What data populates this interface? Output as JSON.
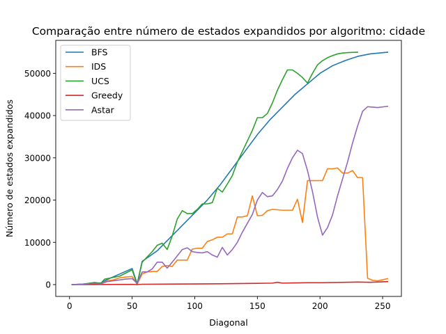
{
  "chart_data": {
    "type": "line",
    "title": "Comparação entre número de estados expandidos por algoritmo: cidade",
    "xlabel": "Diagonal",
    "ylabel": "Número de estados expandidos",
    "xlim": [
      -11,
      265
    ],
    "ylim": [
      -2800,
      57800
    ],
    "x_ticks": [
      0,
      50,
      100,
      150,
      200,
      250
    ],
    "y_ticks": [
      0,
      10000,
      20000,
      30000,
      40000,
      50000
    ],
    "grid": false,
    "legend": "top-left",
    "series": [
      {
        "name": "BFS",
        "color": "#1f77b4",
        "points": [
          [
            2,
            0
          ],
          [
            10,
            100
          ],
          [
            20,
            300
          ],
          [
            25,
            400
          ],
          [
            30,
            1200
          ],
          [
            40,
            2500
          ],
          [
            50,
            3800
          ],
          [
            54,
            200
          ],
          [
            58,
            5500
          ],
          [
            70,
            8000
          ],
          [
            80,
            11000
          ],
          [
            90,
            14000
          ],
          [
            100,
            17000
          ],
          [
            110,
            20000
          ],
          [
            120,
            23500
          ],
          [
            130,
            27500
          ],
          [
            140,
            31500
          ],
          [
            150,
            35500
          ],
          [
            160,
            39000
          ],
          [
            170,
            42000
          ],
          [
            180,
            45000
          ],
          [
            190,
            47500
          ],
          [
            200,
            50000
          ],
          [
            210,
            51800
          ],
          [
            220,
            53000
          ],
          [
            230,
            54000
          ],
          [
            240,
            54600
          ],
          [
            254,
            55000
          ]
        ]
      },
      {
        "name": "IDS",
        "color": "#ff7f0e",
        "points": [
          [
            2,
            0
          ],
          [
            10,
            100
          ],
          [
            20,
            300
          ],
          [
            25,
            100
          ],
          [
            30,
            900
          ],
          [
            35,
            1100
          ],
          [
            40,
            1600
          ],
          [
            45,
            1800
          ],
          [
            50,
            1900
          ],
          [
            54,
            100
          ],
          [
            58,
            2500
          ],
          [
            62,
            3000
          ],
          [
            66,
            3100
          ],
          [
            70,
            3100
          ],
          [
            74,
            4300
          ],
          [
            78,
            4500
          ],
          [
            82,
            4300
          ],
          [
            86,
            5800
          ],
          [
            90,
            5800
          ],
          [
            94,
            5800
          ],
          [
            98,
            8400
          ],
          [
            102,
            8600
          ],
          [
            106,
            8600
          ],
          [
            110,
            10200
          ],
          [
            114,
            10600
          ],
          [
            118,
            11200
          ],
          [
            122,
            11200
          ],
          [
            126,
            12000
          ],
          [
            130,
            12000
          ],
          [
            134,
            16000
          ],
          [
            138,
            16000
          ],
          [
            142,
            16300
          ],
          [
            146,
            21000
          ],
          [
            150,
            16300
          ],
          [
            154,
            16400
          ],
          [
            158,
            17500
          ],
          [
            162,
            17800
          ],
          [
            166,
            17700
          ],
          [
            170,
            17600
          ],
          [
            174,
            17600
          ],
          [
            178,
            17600
          ],
          [
            182,
            20200
          ],
          [
            186,
            14700
          ],
          [
            190,
            24600
          ],
          [
            194,
            24600
          ],
          [
            198,
            24600
          ],
          [
            202,
            24600
          ],
          [
            206,
            27400
          ],
          [
            210,
            27400
          ],
          [
            214,
            27600
          ],
          [
            218,
            26400
          ],
          [
            222,
            26400
          ],
          [
            226,
            27000
          ],
          [
            230,
            25300
          ],
          [
            234,
            25300
          ],
          [
            238,
            1500
          ],
          [
            242,
            1000
          ],
          [
            246,
            900
          ],
          [
            254,
            1400
          ]
        ]
      },
      {
        "name": "UCS",
        "color": "#2ca02c",
        "points": [
          [
            2,
            0
          ],
          [
            10,
            100
          ],
          [
            20,
            500
          ],
          [
            25,
            300
          ],
          [
            28,
            1300
          ],
          [
            40,
            2000
          ],
          [
            50,
            3500
          ],
          [
            54,
            0
          ],
          [
            58,
            5300
          ],
          [
            66,
            7800
          ],
          [
            70,
            9300
          ],
          [
            74,
            9800
          ],
          [
            78,
            8300
          ],
          [
            82,
            11500
          ],
          [
            86,
            15500
          ],
          [
            90,
            17500
          ],
          [
            94,
            16800
          ],
          [
            98,
            16800
          ],
          [
            102,
            17800
          ],
          [
            106,
            19100
          ],
          [
            110,
            19100
          ],
          [
            114,
            19400
          ],
          [
            118,
            22800
          ],
          [
            122,
            21900
          ],
          [
            126,
            23800
          ],
          [
            130,
            25800
          ],
          [
            134,
            29000
          ],
          [
            138,
            31500
          ],
          [
            142,
            34000
          ],
          [
            146,
            36500
          ],
          [
            150,
            39500
          ],
          [
            154,
            39500
          ],
          [
            158,
            40500
          ],
          [
            162,
            43000
          ],
          [
            166,
            46000
          ],
          [
            170,
            48500
          ],
          [
            174,
            50800
          ],
          [
            178,
            50800
          ],
          [
            182,
            50000
          ],
          [
            186,
            49000
          ],
          [
            190,
            47700
          ],
          [
            194,
            50000
          ],
          [
            198,
            52000
          ],
          [
            202,
            53000
          ],
          [
            206,
            53700
          ],
          [
            210,
            54200
          ],
          [
            214,
            54600
          ],
          [
            218,
            54800
          ],
          [
            222,
            54900
          ],
          [
            230,
            55000
          ]
        ]
      },
      {
        "name": "Greedy",
        "color": "#d62728",
        "points": [
          [
            2,
            0
          ],
          [
            50,
            50
          ],
          [
            54,
            0
          ],
          [
            58,
            80
          ],
          [
            100,
            150
          ],
          [
            120,
            200
          ],
          [
            150,
            300
          ],
          [
            162,
            350
          ],
          [
            166,
            550
          ],
          [
            170,
            350
          ],
          [
            180,
            400
          ],
          [
            190,
            450
          ],
          [
            200,
            450
          ],
          [
            220,
            550
          ],
          [
            230,
            600
          ],
          [
            240,
            550
          ],
          [
            254,
            700
          ]
        ]
      },
      {
        "name": "Astar",
        "color": "#9467bd",
        "points": [
          [
            2,
            0
          ],
          [
            10,
            100
          ],
          [
            20,
            300
          ],
          [
            25,
            200
          ],
          [
            30,
            700
          ],
          [
            40,
            1100
          ],
          [
            45,
            1300
          ],
          [
            50,
            1400
          ],
          [
            54,
            300
          ],
          [
            58,
            3000
          ],
          [
            62,
            3000
          ],
          [
            66,
            3700
          ],
          [
            70,
            5300
          ],
          [
            74,
            5300
          ],
          [
            78,
            3900
          ],
          [
            82,
            5300
          ],
          [
            86,
            6800
          ],
          [
            90,
            8300
          ],
          [
            94,
            8700
          ],
          [
            98,
            7800
          ],
          [
            102,
            7600
          ],
          [
            106,
            7500
          ],
          [
            110,
            7800
          ],
          [
            114,
            7000
          ],
          [
            118,
            6500
          ],
          [
            122,
            8800
          ],
          [
            126,
            7000
          ],
          [
            130,
            8300
          ],
          [
            134,
            10000
          ],
          [
            138,
            12400
          ],
          [
            142,
            14500
          ],
          [
            146,
            16600
          ],
          [
            150,
            20000
          ],
          [
            154,
            21800
          ],
          [
            158,
            20800
          ],
          [
            162,
            21000
          ],
          [
            166,
            22500
          ],
          [
            170,
            24500
          ],
          [
            174,
            27500
          ],
          [
            178,
            30000
          ],
          [
            182,
            31800
          ],
          [
            186,
            31000
          ],
          [
            190,
            27000
          ],
          [
            194,
            22000
          ],
          [
            198,
            16000
          ],
          [
            202,
            11700
          ],
          [
            206,
            13500
          ],
          [
            210,
            16500
          ],
          [
            214,
            21000
          ],
          [
            218,
            25000
          ],
          [
            222,
            29000
          ],
          [
            226,
            33500
          ],
          [
            230,
            37500
          ],
          [
            234,
            41000
          ],
          [
            238,
            42100
          ],
          [
            242,
            42000
          ],
          [
            246,
            41900
          ],
          [
            254,
            42200
          ]
        ]
      }
    ]
  }
}
